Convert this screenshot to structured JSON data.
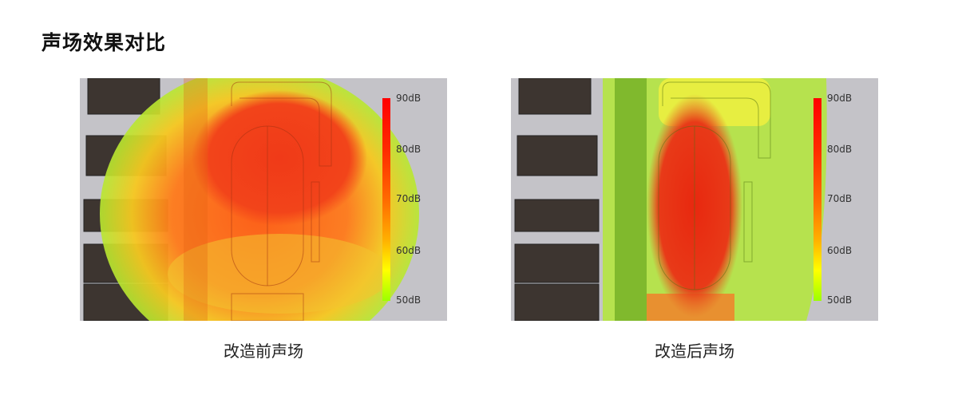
{
  "title": "声场效果对比",
  "panels": [
    {
      "caption": "改造前声场"
    },
    {
      "caption": "改造后声场"
    }
  ],
  "legend": {
    "labels": [
      "90dB",
      "80dB",
      "70dB",
      "60dB",
      "50dB"
    ],
    "colors": {
      "max": "#ff0000",
      "mid": "#ff8000",
      "low": "#ffff00",
      "min": "#9cff00"
    }
  }
}
